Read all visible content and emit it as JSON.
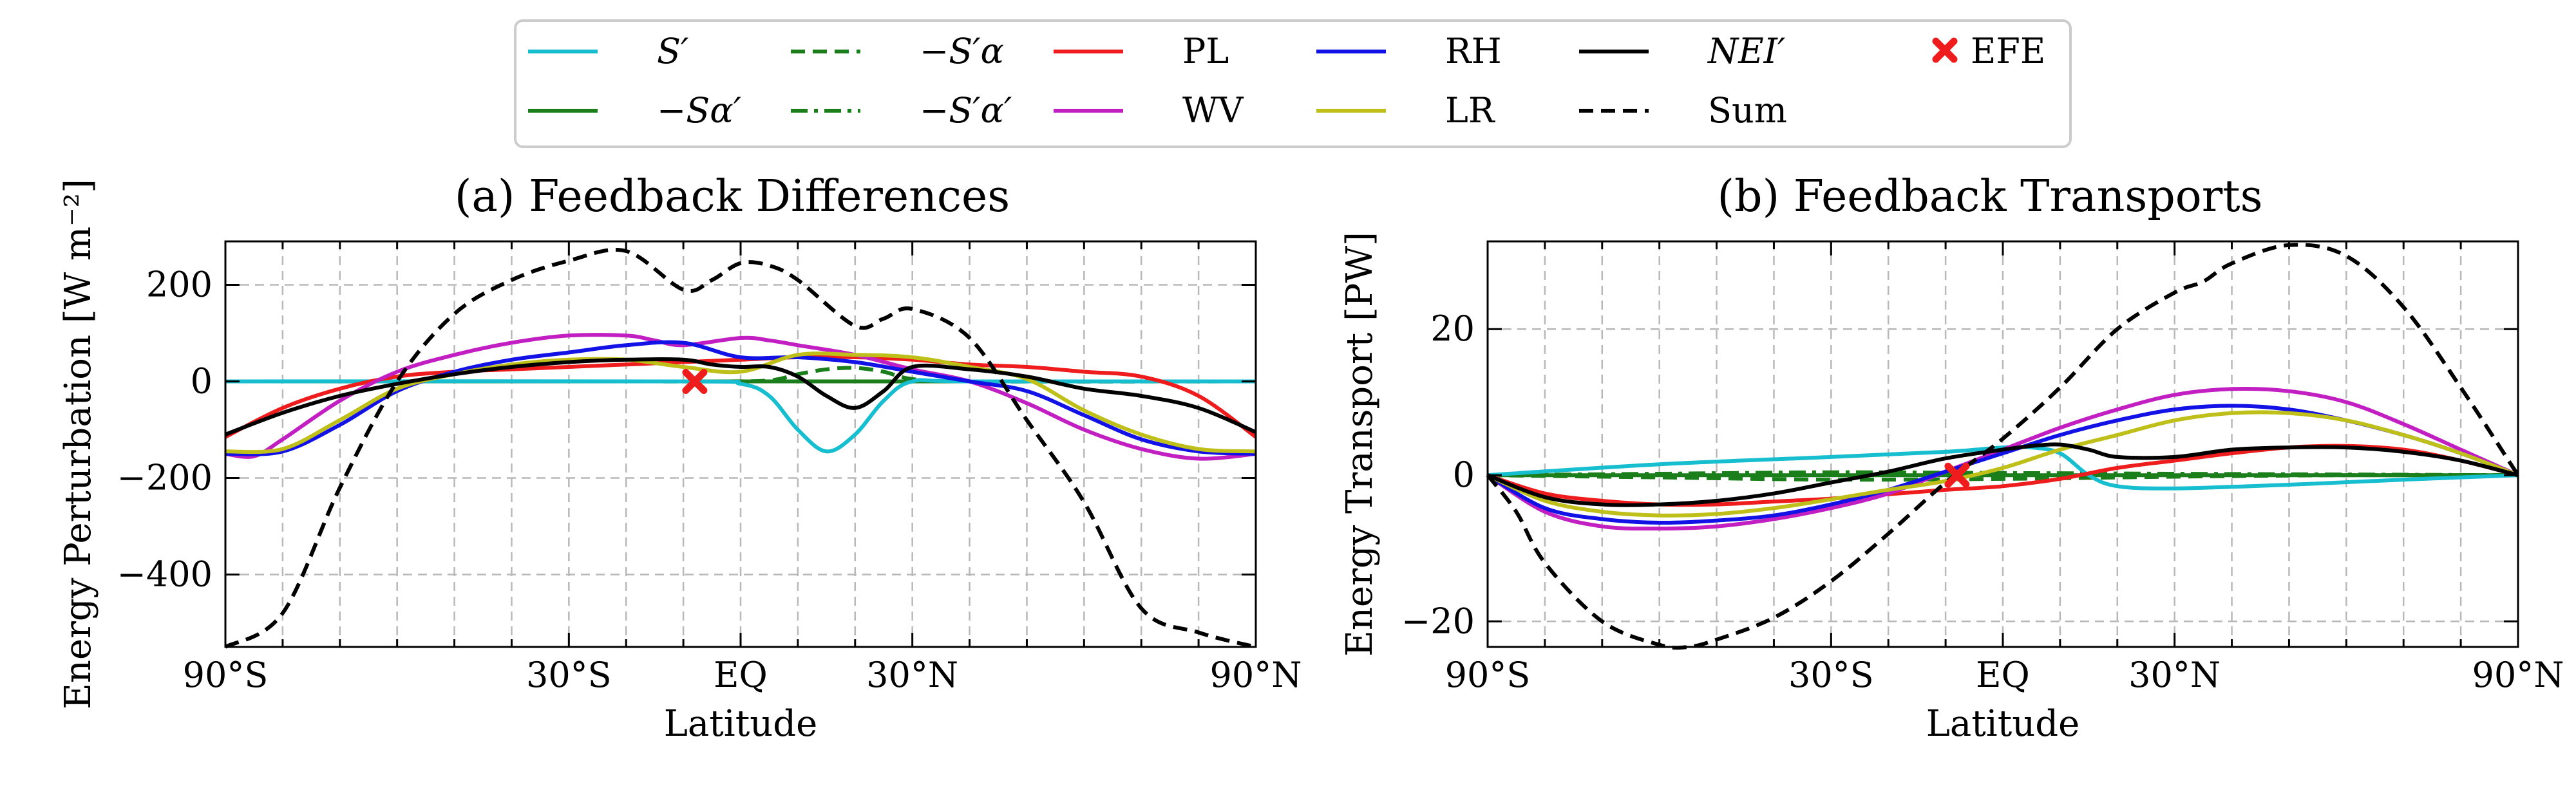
{
  "legend": {
    "items": [
      {
        "key": "S_prime",
        "label": "S′",
        "color": "#17becf",
        "dash": "solid"
      },
      {
        "key": "neg_S_alpha_p",
        "label": "−Sα′",
        "color": "#1a7f1a",
        "dash": "solid"
      },
      {
        "key": "neg_Sp_alpha",
        "label": "−S′α",
        "color": "#1a7f1a",
        "dash": "dashed"
      },
      {
        "key": "neg_Sp_alpha_p",
        "label": "−S′α′",
        "color": "#1a7f1a",
        "dash": "dashdot"
      },
      {
        "key": "PL",
        "label": "PL",
        "color": "#ee1c1c",
        "dash": "solid"
      },
      {
        "key": "WV",
        "label": "WV",
        "color": "#c21fc2",
        "dash": "solid"
      },
      {
        "key": "RH",
        "label": "RH",
        "color": "#1212e6",
        "dash": "solid"
      },
      {
        "key": "LR",
        "label": "LR",
        "color": "#bfbf1a",
        "dash": "solid"
      },
      {
        "key": "NEI",
        "label": "NEI′",
        "color": "#000000",
        "dash": "solid"
      },
      {
        "key": "Sum",
        "label": "Sum",
        "color": "#000000",
        "dash": "dashed"
      },
      {
        "key": "EFE",
        "label": "EFE",
        "color": "#ee1c1c",
        "dash": "marker"
      }
    ]
  },
  "chart_data": [
    {
      "type": "line",
      "title": "(a) Feedback Differences",
      "xlabel": "Latitude",
      "ylabel": "Energy Perturbation [W m⁻²]",
      "xlim": [
        -90,
        90
      ],
      "ylim": [
        -550,
        290
      ],
      "xticks": [
        -90,
        -30,
        0,
        30,
        90
      ],
      "xtick_labels": [
        "90°S",
        "30°S",
        "EQ",
        "30°N",
        "90°N"
      ],
      "yticks": [
        -400,
        -200,
        0,
        200
      ],
      "ytick_labels": [
        "−400",
        "−200",
        "0",
        "200"
      ],
      "grid": true,
      "efe": {
        "x": -8,
        "y": 0
      },
      "series": [
        {
          "key": "neg_S_alpha_p",
          "x": [
            -90,
            90
          ],
          "y": [
            0,
            0
          ]
        },
        {
          "key": "neg_Sp_alpha_p",
          "x": [
            -90,
            90
          ],
          "y": [
            0,
            0
          ]
        },
        {
          "key": "neg_Sp_alpha",
          "x": [
            -90,
            -45,
            -20,
            -5,
            5,
            10,
            15,
            20,
            25,
            30,
            40,
            90
          ],
          "y": [
            0,
            0,
            0,
            0,
            2,
            15,
            25,
            28,
            20,
            5,
            0,
            0
          ]
        },
        {
          "key": "S_prime",
          "x": [
            -90,
            -10,
            0,
            5,
            10,
            15,
            20,
            25,
            30,
            40,
            90
          ],
          "y": [
            0,
            0,
            -5,
            -30,
            -100,
            -145,
            -110,
            -40,
            0,
            0,
            0
          ]
        },
        {
          "key": "PL",
          "x": [
            -90,
            -80,
            -70,
            -60,
            -50,
            -40,
            -30,
            -20,
            -10,
            0,
            10,
            20,
            30,
            40,
            50,
            60,
            70,
            80,
            90
          ],
          "y": [
            -115,
            -55,
            -15,
            10,
            20,
            25,
            30,
            35,
            40,
            45,
            50,
            50,
            45,
            35,
            30,
            20,
            10,
            -30,
            -115
          ]
        },
        {
          "key": "WV",
          "x": [
            -90,
            -85,
            -80,
            -70,
            -60,
            -50,
            -40,
            -30,
            -20,
            -15,
            -10,
            0,
            5,
            10,
            20,
            30,
            40,
            50,
            60,
            70,
            80,
            90
          ],
          "y": [
            -150,
            -155,
            -120,
            -40,
            20,
            55,
            80,
            95,
            95,
            85,
            75,
            90,
            85,
            75,
            55,
            25,
            0,
            -45,
            -100,
            -140,
            -160,
            -150
          ]
        },
        {
          "key": "RH",
          "x": [
            -90,
            -80,
            -70,
            -60,
            -50,
            -40,
            -30,
            -20,
            -10,
            0,
            10,
            20,
            30,
            40,
            50,
            60,
            70,
            80,
            90
          ],
          "y": [
            -150,
            -145,
            -90,
            -20,
            20,
            45,
            60,
            75,
            80,
            50,
            50,
            40,
            20,
            0,
            -20,
            -70,
            -120,
            -145,
            -150
          ]
        },
        {
          "key": "LR",
          "x": [
            -90,
            -80,
            -70,
            -60,
            -50,
            -40,
            -30,
            -20,
            -10,
            0,
            10,
            20,
            30,
            40,
            50,
            60,
            70,
            80,
            90
          ],
          "y": [
            -145,
            -140,
            -80,
            -15,
            15,
            35,
            45,
            45,
            30,
            20,
            55,
            55,
            50,
            30,
            5,
            -60,
            -110,
            -140,
            -145
          ]
        },
        {
          "key": "NEI",
          "x": [
            -90,
            -80,
            -70,
            -60,
            -50,
            -40,
            -30,
            -20,
            -10,
            -5,
            0,
            5,
            10,
            15,
            20,
            25,
            30,
            40,
            50,
            60,
            70,
            80,
            90
          ],
          "y": [
            -110,
            -65,
            -30,
            -5,
            15,
            30,
            40,
            45,
            45,
            35,
            30,
            30,
            10,
            -30,
            -55,
            -20,
            30,
            25,
            10,
            -15,
            -30,
            -55,
            -105
          ]
        },
        {
          "key": "Sum",
          "x": [
            -90,
            -80,
            -70,
            -60,
            -50,
            -40,
            -30,
            -20,
            -10,
            -5,
            0,
            5,
            10,
            20,
            25,
            30,
            40,
            50,
            60,
            70,
            80,
            90
          ],
          "y": [
            -550,
            -480,
            -220,
            0,
            140,
            210,
            250,
            270,
            190,
            210,
            245,
            240,
            210,
            115,
            130,
            150,
            90,
            -80,
            -250,
            -470,
            -520,
            -550
          ]
        }
      ]
    },
    {
      "type": "line",
      "title": "(b) Feedback Transports",
      "xlabel": "Latitude",
      "ylabel": "Energy Transport [PW]",
      "xlim": [
        -90,
        90
      ],
      "ylim": [
        -23.5,
        32
      ],
      "xticks": [
        -90,
        -30,
        0,
        30,
        90
      ],
      "xtick_labels": [
        "90°S",
        "30°S",
        "EQ",
        "30°N",
        "90°N"
      ],
      "yticks": [
        -20,
        0,
        20
      ],
      "ytick_labels": [
        "−20",
        "0",
        "20"
      ],
      "grid": true,
      "efe": {
        "x": -8,
        "y": 0
      },
      "series": [
        {
          "key": "neg_S_alpha_p",
          "x": [
            -90,
            90
          ],
          "y": [
            0,
            0
          ]
        },
        {
          "key": "neg_Sp_alpha",
          "x": [
            -90,
            -60,
            -30,
            0,
            30,
            60,
            90
          ],
          "y": [
            0,
            -0.3,
            -0.6,
            -0.5,
            -0.2,
            0,
            0
          ]
        },
        {
          "key": "neg_Sp_alpha_p",
          "x": [
            -90,
            -60,
            -30,
            0,
            30,
            60,
            90
          ],
          "y": [
            0,
            0.2,
            0.4,
            0.3,
            0.2,
            0.1,
            0
          ]
        },
        {
          "key": "S_prime",
          "x": [
            -90,
            -60,
            -30,
            -10,
            0,
            5,
            10,
            15,
            20,
            30,
            50,
            70,
            90
          ],
          "y": [
            0,
            1.5,
            2.5,
            3.2,
            3.8,
            3.8,
            3.0,
            0,
            -1.5,
            -1.8,
            -1.3,
            -0.6,
            0
          ]
        },
        {
          "key": "PL",
          "x": [
            -90,
            -80,
            -70,
            -60,
            -50,
            -40,
            -30,
            -20,
            -10,
            0,
            10,
            20,
            30,
            40,
            50,
            60,
            70,
            80,
            90
          ],
          "y": [
            0,
            -2.5,
            -3.5,
            -4,
            -4,
            -3.6,
            -3.2,
            -2.6,
            -2,
            -1.5,
            -0.5,
            1,
            2,
            3,
            3.8,
            4,
            3.5,
            2,
            0
          ]
        },
        {
          "key": "WV",
          "x": [
            -90,
            -80,
            -70,
            -60,
            -50,
            -40,
            -30,
            -20,
            -10,
            0,
            10,
            20,
            30,
            40,
            50,
            60,
            70,
            80,
            90
          ],
          "y": [
            0,
            -5,
            -7,
            -7.3,
            -7,
            -6,
            -4.5,
            -2.5,
            0.5,
            3.5,
            6.5,
            9,
            11,
            11.8,
            11.5,
            10,
            7,
            3.5,
            0
          ]
        },
        {
          "key": "RH",
          "x": [
            -90,
            -80,
            -70,
            -60,
            -50,
            -40,
            -30,
            -20,
            -10,
            0,
            10,
            20,
            30,
            40,
            50,
            60,
            70,
            80,
            90
          ],
          "y": [
            0,
            -4.5,
            -6,
            -6.5,
            -6.2,
            -5.5,
            -4,
            -2,
            0.5,
            3,
            5.5,
            7.5,
            9,
            9.5,
            9,
            7.5,
            5.5,
            3,
            0
          ]
        },
        {
          "key": "LR",
          "x": [
            -90,
            -80,
            -70,
            -60,
            -50,
            -40,
            -30,
            -20,
            -10,
            0,
            10,
            20,
            30,
            40,
            50,
            60,
            70,
            80,
            90
          ],
          "y": [
            0,
            -3.5,
            -5,
            -5.5,
            -5.3,
            -4.5,
            -3.3,
            -2,
            -0.8,
            1,
            3.5,
            5.5,
            7.5,
            8.5,
            8.5,
            7.5,
            5.5,
            3,
            0
          ]
        },
        {
          "key": "NEI",
          "x": [
            -90,
            -80,
            -70,
            -60,
            -50,
            -40,
            -30,
            -20,
            -10,
            0,
            5,
            10,
            15,
            20,
            30,
            40,
            50,
            60,
            70,
            80,
            90
          ],
          "y": [
            0,
            -3,
            -4,
            -4,
            -3.5,
            -2.5,
            -1,
            0.5,
            2.3,
            3.5,
            4,
            4.2,
            3.5,
            2.5,
            2.5,
            3.5,
            3.8,
            3.8,
            3.2,
            2,
            0
          ]
        },
        {
          "key": "Sum",
          "x": [
            -90,
            -85,
            -80,
            -70,
            -60,
            -55,
            -50,
            -40,
            -30,
            -20,
            -10,
            0,
            10,
            20,
            30,
            35,
            40,
            50,
            60,
            70,
            80,
            90
          ],
          "y": [
            0,
            -5,
            -12,
            -20,
            -23.2,
            -23.5,
            -22.5,
            -19.5,
            -14.5,
            -8,
            -1,
            5,
            12,
            20,
            25,
            26.5,
            29,
            31.5,
            30,
            23,
            12,
            0
          ]
        }
      ]
    }
  ]
}
